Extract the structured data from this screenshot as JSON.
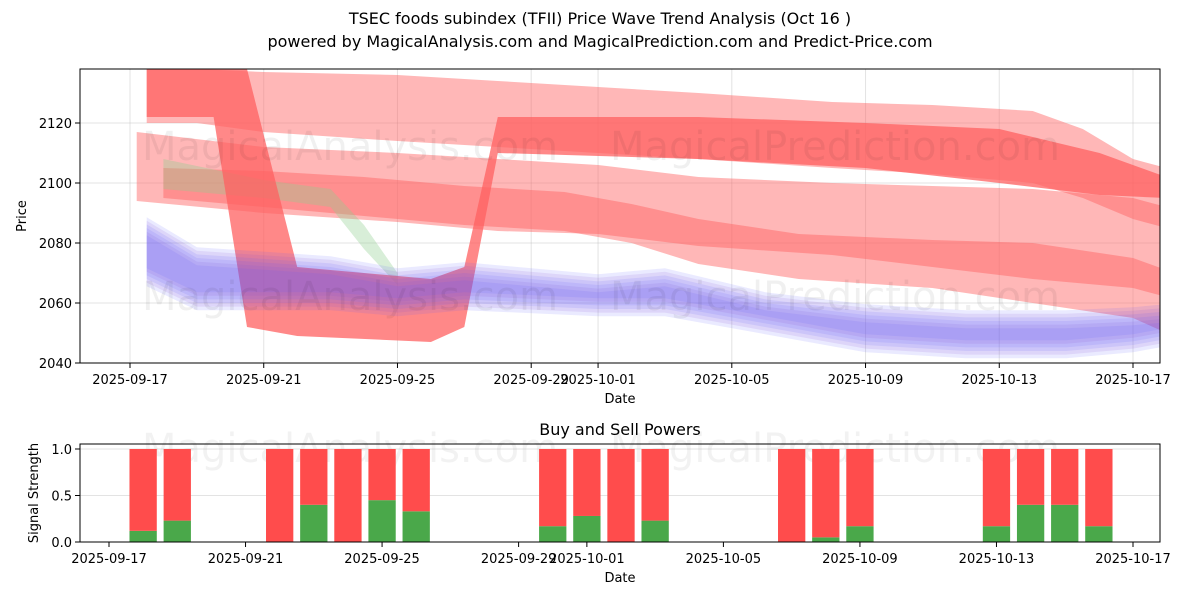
{
  "header": {
    "title": "TSEC foods subindex (TFII) Price Wave Trend Analysis (Oct 16 )",
    "subtitle": "powered by MagicalAnalysis.com and MagicalPrediction.com and Predict-Price.com"
  },
  "watermarks": [
    "MagicalAnalysis.com",
    "MagicalPrediction.com"
  ],
  "chart_data": [
    {
      "type": "area",
      "title": "",
      "xlabel": "Date",
      "ylabel": "Price",
      "ylim": [
        2040,
        2138
      ],
      "xlim": [
        "2025-09-15.5",
        "2025-10-17.8"
      ],
      "yticks": [
        2040,
        2060,
        2080,
        2100,
        2120
      ],
      "xticks": [
        "2025-09-17",
        "2025-09-21",
        "2025-09-25",
        "2025-09-29",
        "2025-10-01",
        "2025-10-05",
        "2025-10-09",
        "2025-10-13",
        "2025-10-17"
      ],
      "grid": true,
      "colors": {
        "sell": "#ff6b6b",
        "buy": "#6b6bff",
        "neutral": "#8fcf8f"
      },
      "bands": [
        {
          "name": "red-wave-1",
          "color": "#ff6060",
          "opacity": 0.45,
          "upper": [
            [
              16.5,
              2138
            ],
            [
              18.0,
              2138
            ],
            [
              20,
              2137
            ],
            [
              24,
              2136
            ],
            [
              27,
              2134
            ],
            [
              30,
              2132
            ],
            [
              33,
              2130
            ],
            [
              37,
              2127
            ],
            [
              40,
              2126
            ],
            [
              43,
              2124
            ],
            [
              44.5,
              2118
            ],
            [
              46,
              2108
            ],
            [
              47,
              2105
            ]
          ],
          "lower": [
            [
              16.5,
              2120
            ],
            [
              18.0,
              2120
            ],
            [
              20,
              2117
            ],
            [
              24,
              2114
            ],
            [
              27,
              2112
            ],
            [
              30,
              2110
            ],
            [
              33,
              2108
            ],
            [
              37,
              2105
            ],
            [
              40,
              2103
            ],
            [
              43,
              2100
            ],
            [
              44.5,
              2095
            ],
            [
              46,
              2088
            ],
            [
              47,
              2085
            ]
          ]
        },
        {
          "name": "red-wave-2",
          "color": "#ff6060",
          "opacity": 0.45,
          "upper": [
            [
              16.2,
              2117
            ],
            [
              20,
              2112
            ],
            [
              24,
              2110
            ],
            [
              27,
              2108
            ],
            [
              30,
              2106
            ],
            [
              33,
              2102
            ],
            [
              37,
              2100
            ],
            [
              40,
              2099
            ],
            [
              43,
              2098
            ],
            [
              46,
              2095
            ],
            [
              47,
              2092
            ]
          ],
          "lower": [
            [
              16.2,
              2094
            ],
            [
              20,
              2090
            ],
            [
              24,
              2087
            ],
            [
              27,
              2084
            ],
            [
              30,
              2083
            ],
            [
              33,
              2079
            ],
            [
              37,
              2076
            ],
            [
              40,
              2072
            ],
            [
              43,
              2068
            ],
            [
              46,
              2065
            ],
            [
              47,
              2062
            ]
          ]
        },
        {
          "name": "red-wave-3",
          "color": "#ff6060",
          "opacity": 0.45,
          "upper": [
            [
              17,
              2105
            ],
            [
              20,
              2104
            ],
            [
              23,
              2102
            ],
            [
              26,
              2099
            ],
            [
              29,
              2097
            ],
            [
              31,
              2093
            ],
            [
              33,
              2088
            ],
            [
              36,
              2083
            ],
            [
              40,
              2081
            ],
            [
              43,
              2080
            ],
            [
              46,
              2075
            ],
            [
              47,
              2071
            ]
          ],
          "lower": [
            [
              17,
              2095
            ],
            [
              20,
              2092
            ],
            [
              23,
              2089
            ],
            [
              26,
              2086
            ],
            [
              29,
              2084
            ],
            [
              31,
              2080
            ],
            [
              33,
              2073
            ],
            [
              36,
              2068
            ],
            [
              40,
              2065
            ],
            [
              43,
              2060
            ],
            [
              46,
              2055
            ],
            [
              47,
              2050
            ]
          ]
        },
        {
          "name": "green-wave",
          "color": "#8fcf8f",
          "opacity": 0.35,
          "upper": [
            [
              17,
              2108
            ],
            [
              20,
              2101
            ],
            [
              22,
              2098
            ],
            [
              23,
              2086
            ],
            [
              24,
              2070
            ]
          ],
          "lower": [
            [
              17,
              2098
            ],
            [
              20,
              2095
            ],
            [
              22,
              2092
            ],
            [
              23,
              2078
            ],
            [
              24,
              2066
            ]
          ]
        }
      ],
      "bold_bands": [
        {
          "name": "red-drop-1",
          "color": "#ff6060",
          "opacity": 0.75,
          "upper": [
            [
              16.5,
              2138
            ],
            [
              19.5,
              2138
            ],
            [
              21,
              2072
            ],
            [
              25,
              2068
            ],
            [
              26,
              2072
            ],
            [
              27,
              2122
            ],
            [
              33,
              2122
            ],
            [
              38,
              2120
            ],
            [
              42,
              2118
            ],
            [
              45,
              2110
            ],
            [
              47,
              2102
            ]
          ],
          "lower": [
            [
              16.5,
              2122
            ],
            [
              18.5,
              2122
            ],
            [
              19.5,
              2052
            ],
            [
              21,
              2049
            ],
            [
              25,
              2047
            ],
            [
              26,
              2052
            ],
            [
              27,
              2110
            ],
            [
              33,
              2108
            ],
            [
              38,
              2105
            ],
            [
              42,
              2100
            ],
            [
              45,
              2096
            ],
            [
              47,
              2095
            ]
          ]
        }
      ],
      "blue_bands": [
        {
          "upper": [
            [
              16.5,
              2085
            ],
            [
              18,
              2075
            ],
            [
              22,
              2072
            ],
            [
              24,
              2068
            ],
            [
              26,
              2070
            ],
            [
              30,
              2066
            ],
            [
              32,
              2068
            ],
            [
              35,
              2060
            ],
            [
              38,
              2056
            ],
            [
              41,
              2054
            ],
            [
              44,
              2054
            ],
            [
              46,
              2055
            ],
            [
              47,
              2056
            ]
          ],
          "lower": [
            [
              16.5,
              2068
            ],
            [
              18,
              2060
            ],
            [
              22,
              2060
            ],
            [
              24,
              2058
            ],
            [
              26,
              2060
            ],
            [
              30,
              2058
            ],
            [
              32,
              2058
            ],
            [
              35,
              2052
            ],
            [
              38,
              2046
            ],
            [
              41,
              2044
            ],
            [
              44,
              2044
            ],
            [
              46,
              2046
            ],
            [
              47,
              2048
            ]
          ]
        }
      ]
    },
    {
      "type": "bar",
      "title": "Buy and Sell Powers",
      "xlabel": "Date",
      "ylabel": "Signal Strength",
      "ylim": [
        0,
        1.05
      ],
      "yticks": [
        "0.0",
        "0.5",
        "1.0"
      ],
      "xticks": [
        "2025-09-17",
        "2025-09-21",
        "2025-09-25",
        "2025-09-29",
        "2025-10-01",
        "2025-10-05",
        "2025-10-09",
        "2025-10-13",
        "2025-10-17"
      ],
      "grid": true,
      "categories": [
        "2025-09-18",
        "2025-09-19",
        "2025-09-22",
        "2025-09-23",
        "2025-09-24",
        "2025-09-25",
        "2025-09-26",
        "2025-09-30",
        "2025-10-01",
        "2025-10-02",
        "2025-10-03",
        "2025-10-07",
        "2025-10-08",
        "2025-10-09",
        "2025-10-13",
        "2025-10-14",
        "2025-10-15",
        "2025-10-16"
      ],
      "series": [
        {
          "name": "Buy",
          "color": "#4aa84a",
          "values": [
            0.12,
            0.23,
            0.0,
            0.4,
            0.0,
            0.45,
            0.33,
            0.17,
            0.28,
            0.0,
            0.23,
            0.0,
            0.05,
            0.17,
            0.17,
            0.4,
            0.4,
            0.17
          ]
        },
        {
          "name": "Sell",
          "color": "#ff4c4c",
          "values": [
            0.88,
            0.77,
            1.0,
            0.6,
            1.0,
            0.55,
            0.67,
            0.83,
            0.72,
            1.0,
            0.77,
            1.0,
            0.95,
            0.83,
            0.83,
            0.6,
            0.6,
            0.83
          ]
        }
      ]
    }
  ]
}
